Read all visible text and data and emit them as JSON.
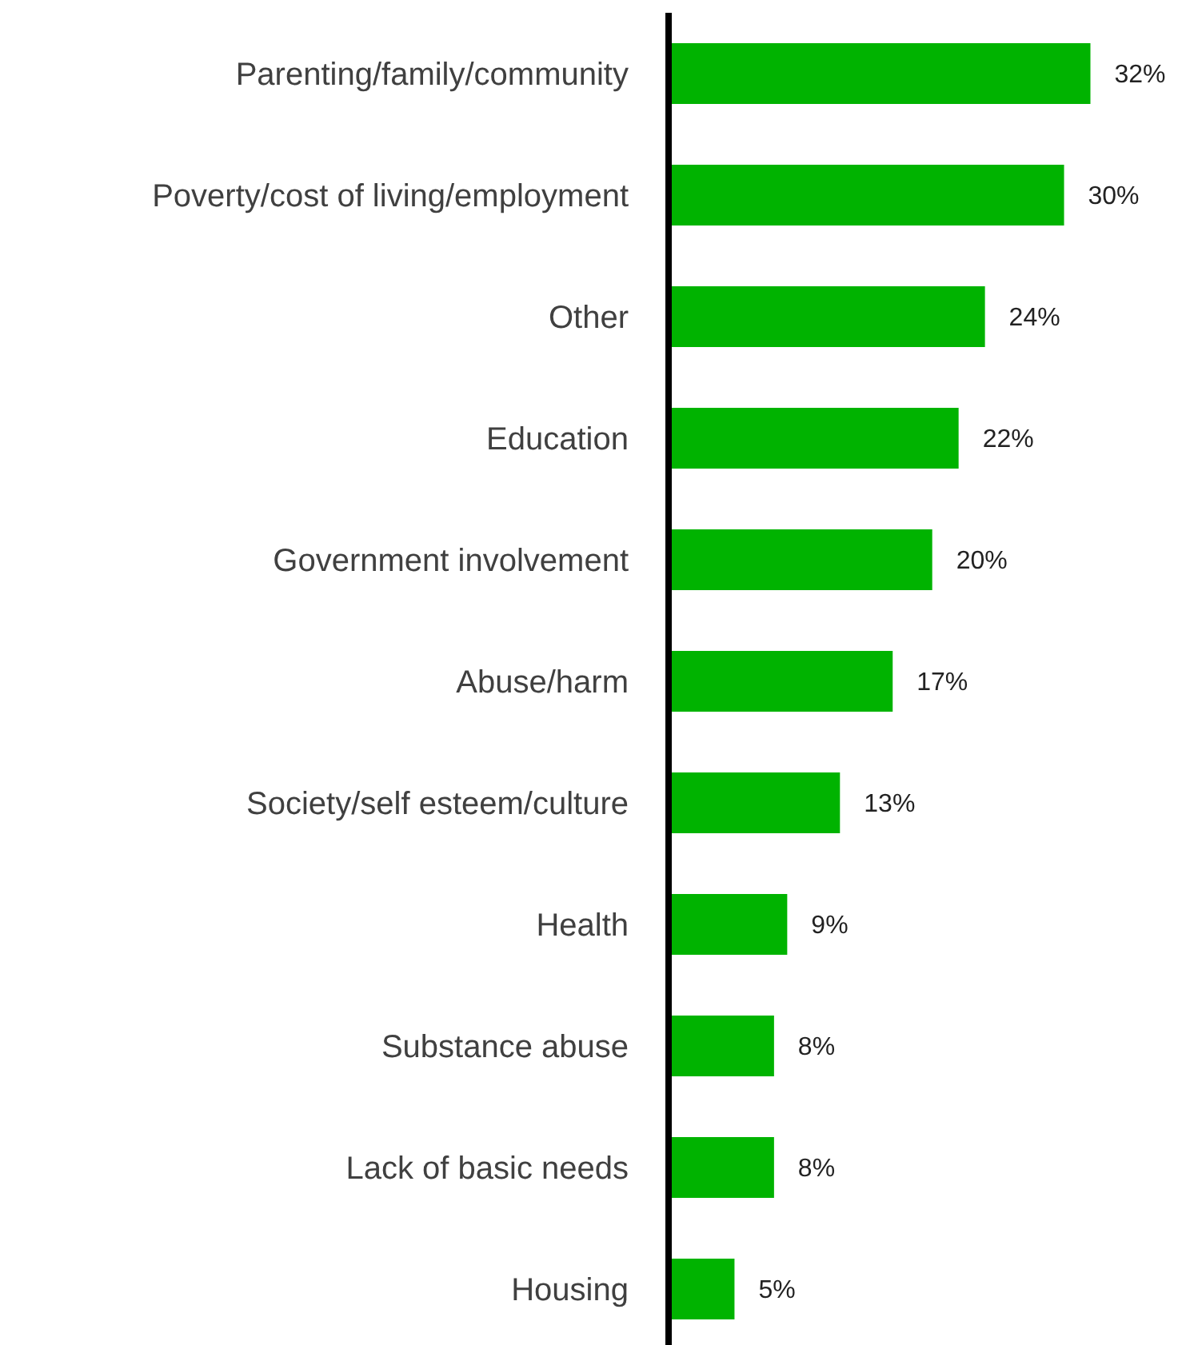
{
  "chart_data": {
    "type": "bar",
    "orientation": "horizontal",
    "categories": [
      "Parenting/family/community",
      "Poverty/cost of living/employment",
      "Other",
      "Education",
      "Government involvement",
      "Abuse/harm",
      "Society/self esteem/culture",
      "Health",
      "Substance abuse",
      "Lack of basic needs",
      "Housing"
    ],
    "values": [
      32,
      30,
      24,
      22,
      20,
      17,
      13,
      9,
      8,
      8,
      5
    ],
    "value_labels": [
      "32%",
      "30%",
      "24%",
      "22%",
      "20%",
      "17%",
      "13%",
      "9%",
      "8%",
      "8%",
      "5%"
    ],
    "color": "#00b300"
  }
}
